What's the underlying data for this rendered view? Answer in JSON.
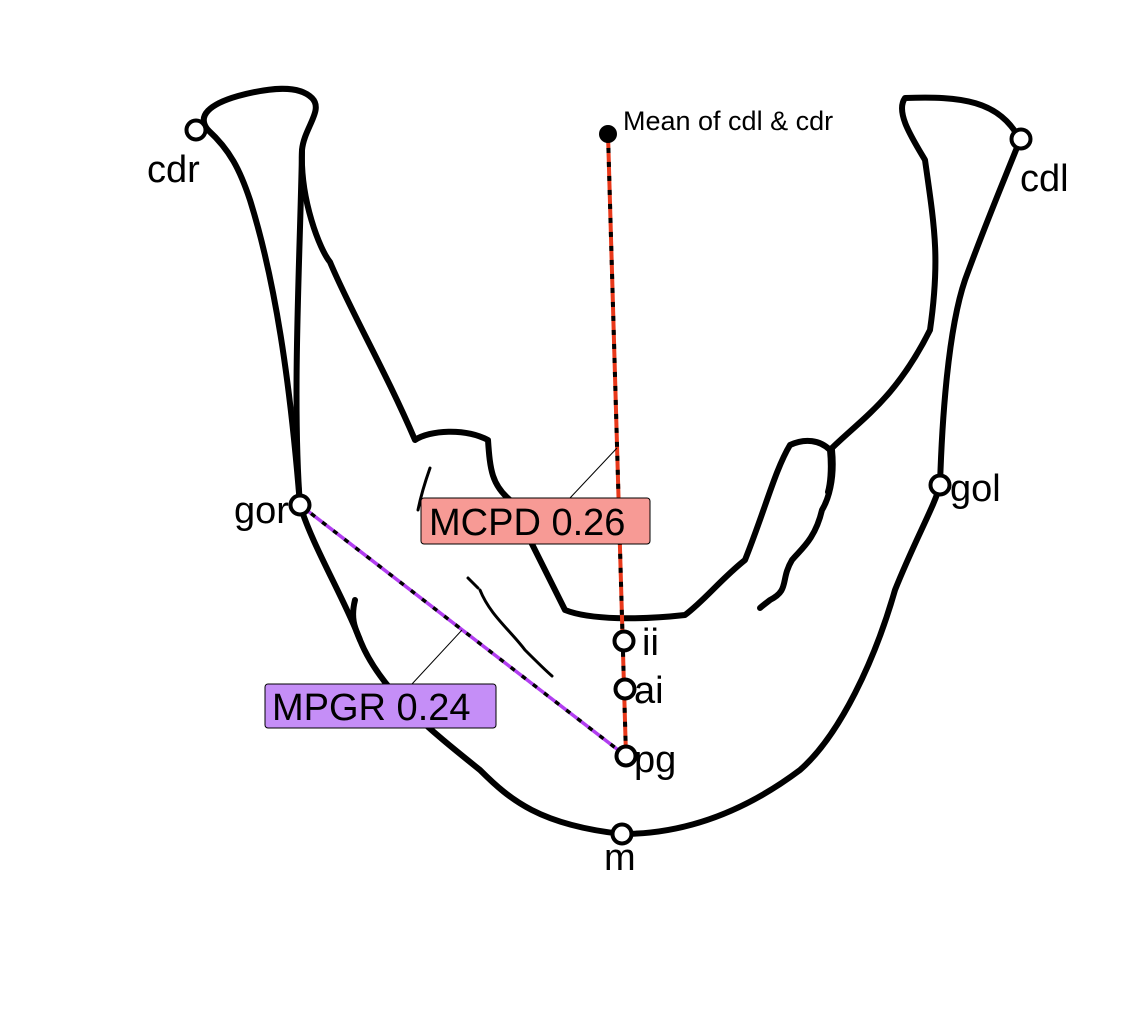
{
  "diagram": {
    "mean_label": "Mean of cdl & cdr",
    "landmarks": [
      {
        "id": "cdr",
        "label": "cdr"
      },
      {
        "id": "cdl",
        "label": "cdl"
      },
      {
        "id": "gor",
        "label": "gor"
      },
      {
        "id": "gol",
        "label": "gol"
      },
      {
        "id": "ii",
        "label": "ii"
      },
      {
        "id": "ai",
        "label": "ai"
      },
      {
        "id": "pg",
        "label": "pg"
      },
      {
        "id": "m",
        "label": "m"
      }
    ],
    "measurements": [
      {
        "id": "mcpd",
        "label": "MCPD 0.26",
        "line_color": "#e8381a",
        "box_color": "#f79a95"
      },
      {
        "id": "mpgr",
        "label": "MPGR 0.24",
        "line_color": "#b13ef0",
        "box_color": "#c58ef7"
      }
    ]
  }
}
